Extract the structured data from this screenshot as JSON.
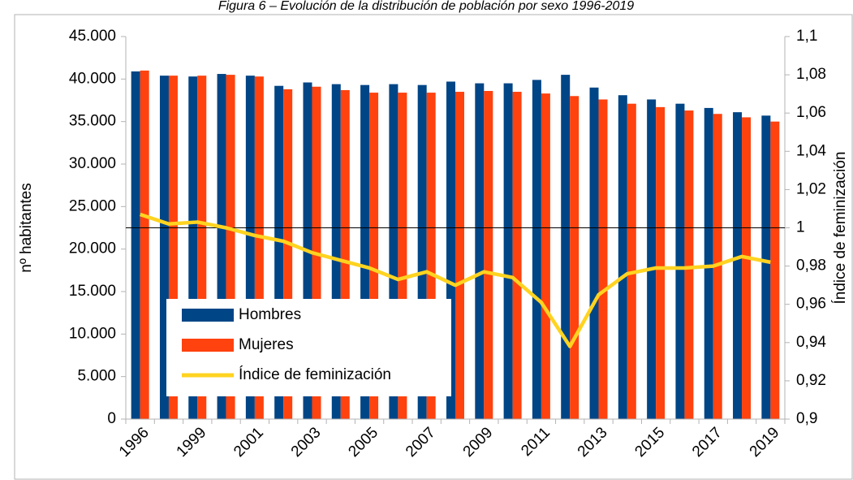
{
  "chart_data": {
    "type": "bar_line",
    "title": "Figura 6 – Evolución de la distribución de población por sexo 1996-2019",
    "categories": [
      "1996",
      null,
      "1999",
      null,
      "2001",
      null,
      "2003",
      null,
      "2005",
      null,
      "2007",
      null,
      "2009",
      null,
      "2011",
      null,
      "2013",
      null,
      "2015",
      null,
      "2017",
      null,
      "2019"
    ],
    "series": [
      {
        "name": "Hombres",
        "color": "#004586",
        "kind": "bar",
        "values": [
          40900,
          40400,
          40300,
          40600,
          40400,
          39200,
          39600,
          39400,
          39300,
          39400,
          39300,
          39700,
          39500,
          39500,
          39900,
          40500,
          39000,
          38100,
          37600,
          37100,
          36600,
          36100,
          35700
        ]
      },
      {
        "name": "Mujeres",
        "color": "#ff420e",
        "kind": "bar",
        "values": [
          41000,
          40400,
          40400,
          40500,
          40300,
          38800,
          39100,
          38700,
          38400,
          38400,
          38400,
          38500,
          38600,
          38500,
          38300,
          38000,
          37600,
          37100,
          36700,
          36300,
          35900,
          35500,
          35000
        ]
      },
      {
        "name": "Índice de feminización",
        "color": "#ffd320",
        "kind": "line",
        "axis": "y2",
        "values": [
          1.007,
          1.002,
          1.003,
          1.0,
          0.996,
          0.993,
          0.987,
          0.983,
          0.979,
          0.973,
          0.977,
          0.97,
          0.977,
          0.974,
          0.961,
          0.938,
          0.965,
          0.976,
          0.979,
          0.979,
          0.98,
          0.985,
          0.982
        ]
      }
    ],
    "ylabel": "nº habitantes",
    "y2label": "Índice de feminización",
    "ylim": [
      0,
      45000
    ],
    "yticks": [
      0,
      {
        "value": 5000,
        "label": "5.000"
      },
      {
        "value": 10000,
        "label": "10.000"
      },
      {
        "value": 15000,
        "label": "15.000"
      },
      {
        "value": 20000,
        "label": "20.000"
      },
      {
        "value": 25000,
        "label": "25.000"
      },
      {
        "value": 30000,
        "label": "30.000"
      },
      {
        "value": 35000,
        "label": "35.000"
      },
      {
        "value": 40000,
        "label": "40.000"
      },
      {
        "value": 45000,
        "label": "45.000"
      }
    ],
    "y2lim": [
      0.9,
      1.1
    ],
    "y2ticks": [
      {
        "value": 0.9,
        "label": "0,9"
      },
      {
        "value": 0.92,
        "label": "0,92"
      },
      {
        "value": 0.94,
        "label": "0,94"
      },
      {
        "value": 0.96,
        "label": "0,96"
      },
      {
        "value": 0.98,
        "label": "0,98"
      },
      1,
      {
        "value": 1.02,
        "label": "1,02"
      },
      {
        "value": 1.04,
        "label": "1,04"
      },
      {
        "value": 1.06,
        "label": "1,06"
      },
      {
        "value": 1.08,
        "label": "1,08"
      },
      {
        "value": 1.1,
        "label": "1,1"
      }
    ],
    "hline": 1,
    "legend": "lower left",
    "grid": false
  }
}
